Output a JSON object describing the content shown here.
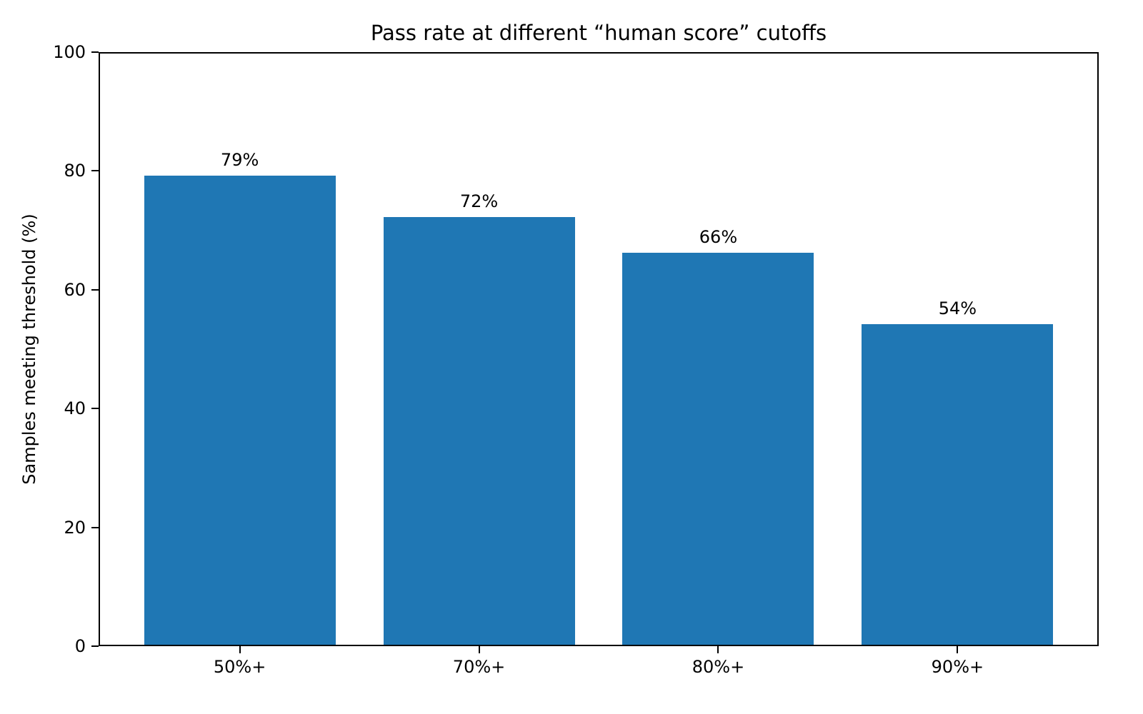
{
  "chart_data": {
    "type": "bar",
    "title": "Pass rate at different “human score” cutoffs",
    "xlabel": "",
    "ylabel": "Samples meeting threshold (%)",
    "categories": [
      "50%+",
      "70%+",
      "80%+",
      "90%+"
    ],
    "values": [
      79,
      72,
      66,
      54
    ],
    "data_labels": [
      "79%",
      "72%",
      "66%",
      "54%"
    ],
    "ylim": [
      0,
      100
    ],
    "yticks": [
      0,
      20,
      40,
      60,
      80,
      100
    ],
    "ytick_labels": [
      "0",
      "20",
      "40",
      "60",
      "80",
      "100"
    ],
    "grid": false,
    "legend": null,
    "bar_color": "#1f77b4"
  }
}
